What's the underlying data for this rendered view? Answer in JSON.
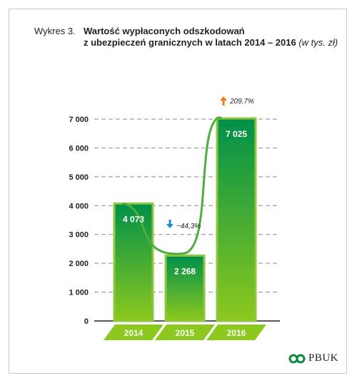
{
  "header": {
    "prefix": "Wykres 3.",
    "title_line1": "Wartość wypłaconych odszkodowań",
    "title_line2": "z ubezpieczeń granicznych w latach 2014 – 2016",
    "title_unit": "(w tys. zł)"
  },
  "chart_data": {
    "type": "bar",
    "categories": [
      "2014",
      "2015",
      "2016"
    ],
    "values": [
      4073,
      2268,
      7025
    ],
    "value_labels": [
      "4 073",
      "2 268",
      "7 025"
    ],
    "ylim": [
      0,
      7000
    ],
    "yticks": [
      0,
      1000,
      2000,
      3000,
      4000,
      5000,
      6000,
      7000
    ],
    "ytick_labels": [
      "0",
      "1 000",
      "2 000",
      "3 000",
      "4 000",
      "5 000",
      "6 000",
      "7 000"
    ],
    "grid": true,
    "trend_line": true,
    "annotations": [
      {
        "text": "−44,3%",
        "direction": "down",
        "color": "#1a8fd0"
      },
      {
        "text": "209,7%",
        "direction": "up",
        "color": "#f07d1a"
      }
    ],
    "colors": {
      "bar_top": "#00904a",
      "bar_bottom": "#8cc81e",
      "bar_border": "#8ec63f",
      "trend": "#4cae3c",
      "category_band": "#8cc81e"
    }
  },
  "footer": {
    "logo_text": "PBUK"
  }
}
